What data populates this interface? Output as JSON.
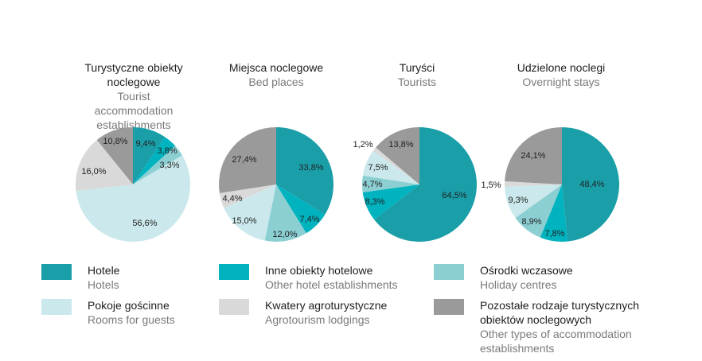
{
  "colors": {
    "hotels": "#1a9fa9",
    "other_hotel": "#00b3bf",
    "holiday": "#8ccfd3",
    "rooms": "#cbe9ec",
    "agro": "#d9d9d9",
    "other_types": "#9a9a9a"
  },
  "charts": [
    {
      "title_pl": "Turystyczne obiekty noclegowe",
      "title_en": "Tourist accommodation establishments"
    },
    {
      "title_pl": "Miejsca noclegowe",
      "title_en": "Bed places"
    },
    {
      "title_pl": "Turyści",
      "title_en": "Tourists"
    },
    {
      "title_pl": "Udzielone noclegi",
      "title_en": "Overnight stays"
    }
  ],
  "legend": [
    {
      "key": "hotels",
      "label_pl": "Hotele",
      "label_en": "Hotels"
    },
    {
      "key": "other_hotel",
      "label_pl": "Inne obiekty hotelowe",
      "label_en": "Other hotel establishments"
    },
    {
      "key": "holiday",
      "label_pl": "Ośrodki wczasowe",
      "label_en": "Holiday centres"
    },
    {
      "key": "rooms",
      "label_pl": "Pokoje gościnne",
      "label_en": "Rooms for guests"
    },
    {
      "key": "agro",
      "label_pl": "Kwatery agroturystyczne",
      "label_en": "Agrotourism lodgings"
    },
    {
      "key": "other_types",
      "label_pl": "Pozostałe rodzaje turystycznych obiektów noclegowych",
      "label_en": "Other types of accommodation establishments"
    }
  ],
  "chart_data": [
    {
      "type": "pie",
      "title": "Turystyczne obiekty noclegowe / Tourist accommodation establishments",
      "series": [
        {
          "key": "hotels",
          "value": 9.4,
          "label": "9,4%"
        },
        {
          "key": "other_hotel",
          "value": 3.8,
          "label": "3,8%"
        },
        {
          "key": "holiday",
          "value": 3.3,
          "label": "3,3%"
        },
        {
          "key": "rooms",
          "value": 56.6,
          "label": "56,6%"
        },
        {
          "key": "agro",
          "value": 16.0,
          "label": "16,0%"
        },
        {
          "key": "other_types",
          "value": 10.8,
          "label": "10,8%"
        }
      ]
    },
    {
      "type": "pie",
      "title": "Miejsca noclegowe / Bed places",
      "series": [
        {
          "key": "hotels",
          "value": 33.8,
          "label": "33,8%"
        },
        {
          "key": "other_hotel",
          "value": 7.4,
          "label": "7,4%"
        },
        {
          "key": "holiday",
          "value": 12.0,
          "label": "12,0%"
        },
        {
          "key": "rooms",
          "value": 15.0,
          "label": "15,0%"
        },
        {
          "key": "agro",
          "value": 4.4,
          "label": "4,4%"
        },
        {
          "key": "other_types",
          "value": 27.4,
          "label": "27,4%"
        }
      ]
    },
    {
      "type": "pie",
      "title": "Turyści / Tourists",
      "series": [
        {
          "key": "hotels",
          "value": 64.5,
          "label": "64,5%"
        },
        {
          "key": "other_hotel",
          "value": 8.3,
          "label": "8,3%"
        },
        {
          "key": "holiday",
          "value": 4.7,
          "label": "4,7%"
        },
        {
          "key": "rooms",
          "value": 7.5,
          "label": "7,5%"
        },
        {
          "key": "agro",
          "value": 1.2,
          "label": "1,2%"
        },
        {
          "key": "other_types",
          "value": 13.8,
          "label": "13,8%"
        }
      ]
    },
    {
      "type": "pie",
      "title": "Udzielone noclegi / Overnight stays",
      "series": [
        {
          "key": "hotels",
          "value": 48.4,
          "label": "48,4%"
        },
        {
          "key": "other_hotel",
          "value": 7.8,
          "label": "7,8%"
        },
        {
          "key": "holiday",
          "value": 8.9,
          "label": "8,9%"
        },
        {
          "key": "rooms",
          "value": 9.3,
          "label": "9,3%"
        },
        {
          "key": "agro",
          "value": 1.5,
          "label": "1,5%"
        },
        {
          "key": "other_types",
          "value": 24.1,
          "label": "24,1%"
        }
      ]
    }
  ]
}
